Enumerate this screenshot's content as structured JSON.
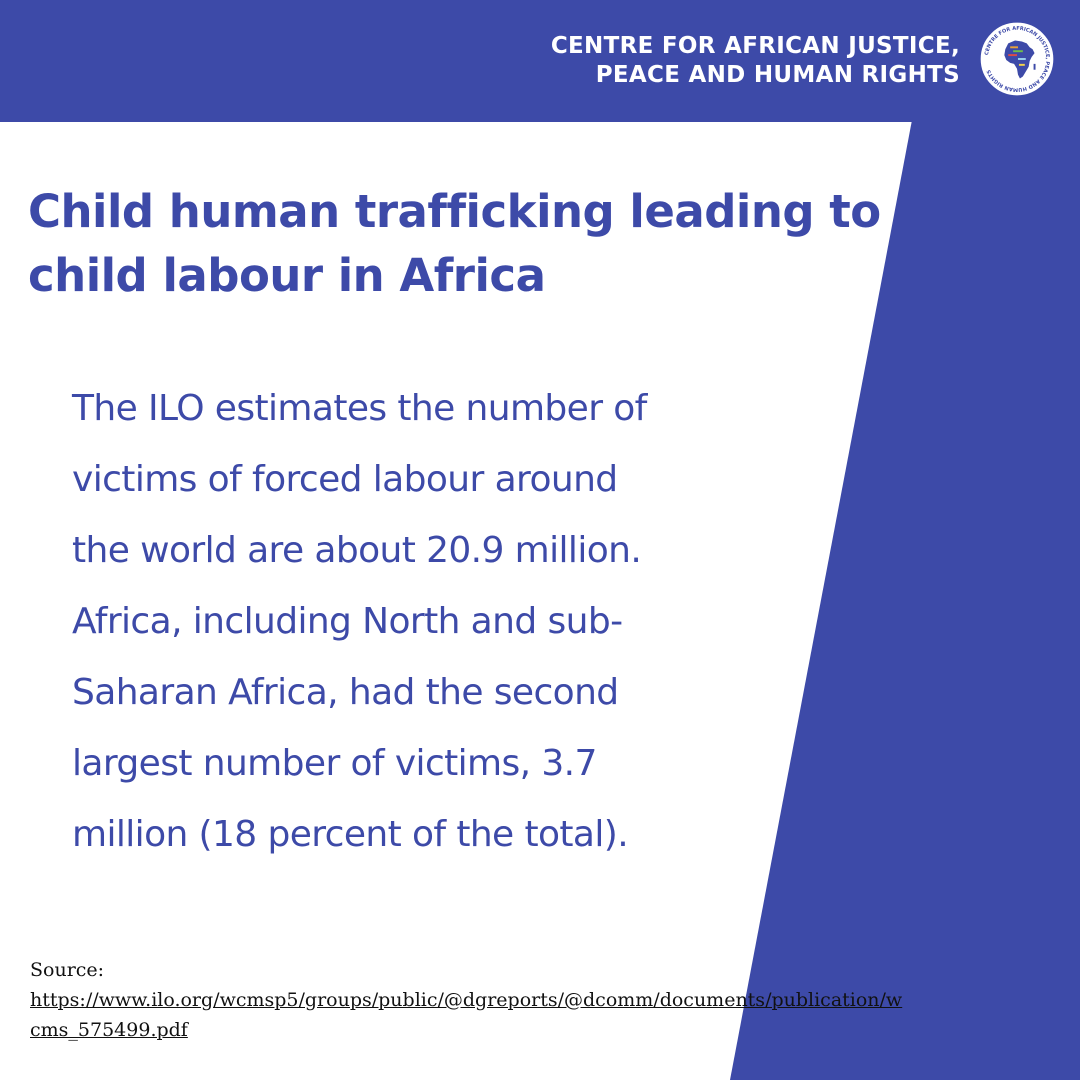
{
  "header": {
    "org_name_line1": "CENTRE FOR AFRICAN JUSTICE,",
    "org_name_line2": "PEACE AND HUMAN RIGHTS",
    "logo_ring_text": "CENTRE FOR AFRICAN JUSTICE, PEACE AND HUMAN RIGHTS",
    "logo_icon": "africa-map-logo"
  },
  "headline": {
    "line1": " Child human trafficking leading to",
    "line2": "child labour in Africa"
  },
  "body": {
    "lines": [
      "The ILO estimates the number of",
      "victims of forced labour around",
      "the world are about 20.9 million.",
      "Africa, including North and sub-",
      "Saharan Africa, had the second",
      "largest number of victims, 3.7",
      "million (18 percent of the total)."
    ]
  },
  "source": {
    "label": "Source:",
    "link_line1": "https://www.ilo.org/wcmsp5/groups/public/@dgreports/@dcomm/documents/publication/w",
    "link_line2": "cms_575499.pdf"
  },
  "colors": {
    "brand_blue": "#3d4aa8",
    "text_dark": "#111111",
    "white": "#ffffff"
  }
}
